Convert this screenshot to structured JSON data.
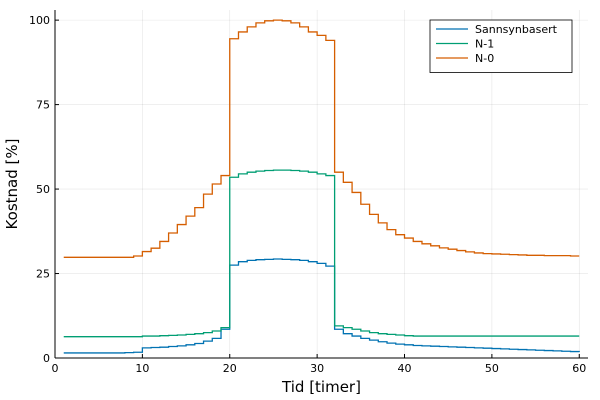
{
  "chart_data": {
    "type": "line",
    "step": true,
    "xlabel": "Tid [timer]",
    "ylabel": "Kostnad [%]",
    "xlim": [
      0,
      61
    ],
    "ylim": [
      0,
      103
    ],
    "xticks": [
      0,
      10,
      20,
      30,
      40,
      50,
      60
    ],
    "yticks": [
      0,
      25,
      50,
      75,
      100
    ],
    "grid": true,
    "legend_position": "top-right",
    "x": [
      1,
      2,
      3,
      4,
      5,
      6,
      7,
      8,
      9,
      10,
      11,
      12,
      13,
      14,
      15,
      16,
      17,
      18,
      19,
      20,
      21,
      22,
      23,
      24,
      25,
      26,
      27,
      28,
      29,
      30,
      31,
      32,
      33,
      34,
      35,
      36,
      37,
      38,
      39,
      40,
      41,
      42,
      43,
      44,
      45,
      46,
      47,
      48,
      49,
      50,
      51,
      52,
      53,
      54,
      55,
      56,
      57,
      58,
      59,
      60
    ],
    "series": [
      {
        "name": "Sannsynbasert",
        "color": "#0072b2",
        "values": [
          1.5,
          1.5,
          1.5,
          1.5,
          1.5,
          1.5,
          1.5,
          1.6,
          1.7,
          3.0,
          3.1,
          3.2,
          3.4,
          3.6,
          3.9,
          4.3,
          5.0,
          5.8,
          8.5,
          27.5,
          28.5,
          28.9,
          29.1,
          29.2,
          29.3,
          29.2,
          29.1,
          28.9,
          28.5,
          28.0,
          27.2,
          8.5,
          7.2,
          6.5,
          5.8,
          5.3,
          4.8,
          4.4,
          4.1,
          3.9,
          3.7,
          3.6,
          3.5,
          3.4,
          3.3,
          3.2,
          3.1,
          3.0,
          2.9,
          2.8,
          2.7,
          2.6,
          2.5,
          2.4,
          2.3,
          2.2,
          2.1,
          2.0,
          1.9,
          1.8
        ]
      },
      {
        "name": "N-1",
        "color": "#009e73",
        "values": [
          6.3,
          6.3,
          6.3,
          6.3,
          6.3,
          6.3,
          6.3,
          6.3,
          6.3,
          6.5,
          6.5,
          6.6,
          6.7,
          6.8,
          7.0,
          7.2,
          7.5,
          8.0,
          9.0,
          53.5,
          54.5,
          55.0,
          55.3,
          55.5,
          55.6,
          55.6,
          55.5,
          55.3,
          55.0,
          54.5,
          54.0,
          9.5,
          9.0,
          8.5,
          8.0,
          7.5,
          7.2,
          7.0,
          6.8,
          6.6,
          6.5,
          6.5,
          6.5,
          6.5,
          6.5,
          6.5,
          6.5,
          6.5,
          6.5,
          6.5,
          6.5,
          6.5,
          6.5,
          6.5,
          6.5,
          6.5,
          6.5,
          6.5,
          6.5,
          6.5
        ]
      },
      {
        "name": "N-0",
        "color": "#d55e00",
        "values": [
          29.8,
          29.8,
          29.8,
          29.8,
          29.8,
          29.8,
          29.8,
          29.8,
          30.2,
          31.5,
          32.5,
          34.5,
          37.0,
          39.5,
          42.0,
          44.5,
          48.5,
          51.5,
          54.0,
          94.5,
          96.5,
          98.0,
          99.2,
          99.8,
          100.0,
          99.8,
          99.2,
          98.0,
          96.5,
          95.5,
          94.0,
          55.0,
          52.0,
          49.0,
          45.5,
          42.5,
          40.0,
          38.0,
          36.5,
          35.5,
          34.5,
          33.8,
          33.2,
          32.6,
          32.2,
          31.8,
          31.4,
          31.1,
          30.9,
          30.8,
          30.7,
          30.6,
          30.5,
          30.4,
          30.4,
          30.3,
          30.3,
          30.3,
          30.2,
          30.2
        ]
      }
    ]
  }
}
